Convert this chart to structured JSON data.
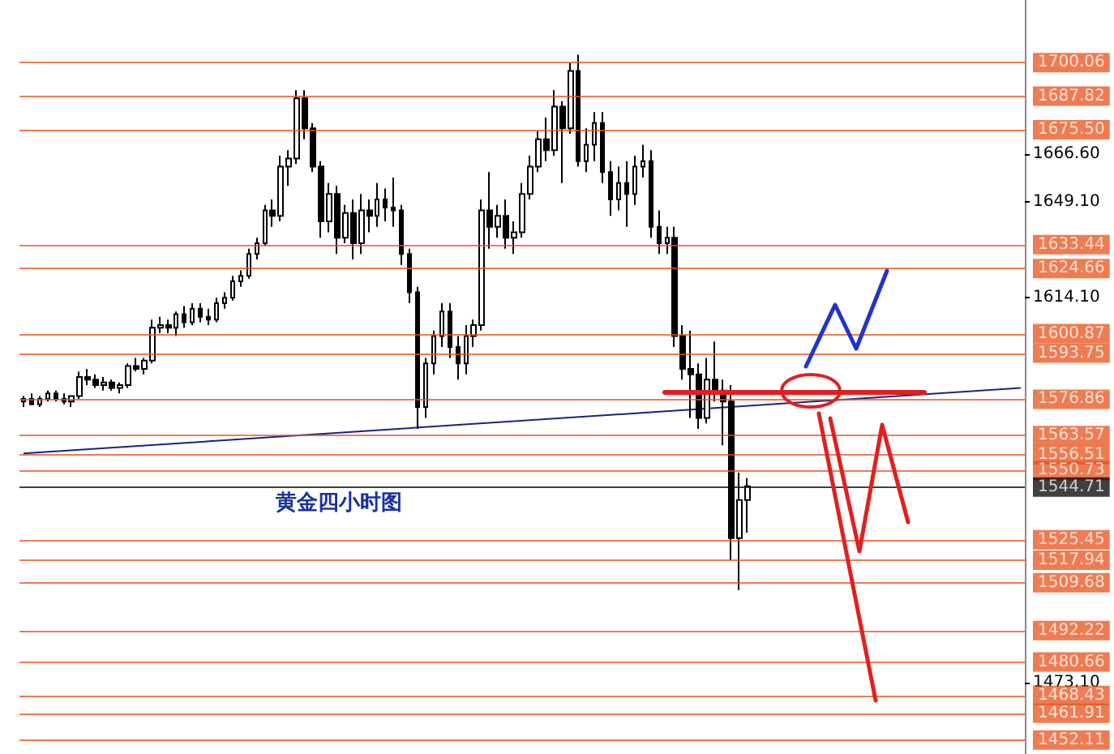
{
  "chart_data": {
    "type": "candlestick",
    "tick_labels": "y",
    "categories": [
      null,
      null,
      null,
      null,
      null,
      null,
      null,
      null,
      null,
      null,
      null,
      null,
      null,
      null,
      null,
      null,
      null,
      null,
      null,
      null,
      null,
      null,
      null,
      null,
      null,
      null,
      null,
      null,
      null,
      null,
      null,
      null,
      null,
      null,
      null,
      null,
      null,
      null,
      null,
      null,
      null,
      null,
      null,
      null,
      null,
      null,
      null,
      null,
      null,
      null,
      null,
      null,
      null,
      null,
      null,
      null,
      null,
      null,
      null,
      null,
      null,
      null,
      null,
      null,
      null,
      null,
      null,
      null,
      null,
      null,
      null,
      null,
      null,
      null,
      null,
      null,
      null,
      null,
      null,
      null,
      null,
      null,
      null,
      null,
      null,
      null,
      null,
      null,
      null,
      null,
      null,
      null,
      null,
      null,
      null,
      null,
      null,
      null,
      null,
      null,
      null,
      null,
      null,
      null,
      null,
      null,
      null,
      null,
      null,
      null,
      null,
      null,
      null,
      null,
      null,
      null,
      null,
      null,
      null,
      null,
      null,
      null,
      null,
      null,
      null
    ],
    "ohlc": [
      [
        1576,
        1578,
        1574,
        1577
      ],
      [
        1577,
        1579,
        1575,
        1575
      ],
      [
        1575,
        1578,
        1574,
        1577
      ],
      [
        1577,
        1580,
        1576,
        1579
      ],
      [
        1579,
        1580,
        1576,
        1577
      ],
      [
        1577,
        1579,
        1575,
        1576
      ],
      [
        1576,
        1578,
        1574,
        1578
      ],
      [
        1578,
        1587,
        1577,
        1585
      ],
      [
        1585,
        1588,
        1582,
        1584
      ],
      [
        1584,
        1586,
        1581,
        1582
      ],
      [
        1582,
        1585,
        1580,
        1583
      ],
      [
        1583,
        1584,
        1580,
        1581
      ],
      [
        1581,
        1583,
        1579,
        1582
      ],
      [
        1582,
        1590,
        1581,
        1589
      ],
      [
        1589,
        1592,
        1587,
        1588
      ],
      [
        1588,
        1592,
        1586,
        1591
      ],
      [
        1591,
        1606,
        1590,
        1603
      ],
      [
        1603,
        1607,
        1601,
        1604
      ],
      [
        1604,
        1606,
        1601,
        1603
      ],
      [
        1603,
        1609,
        1600,
        1608
      ],
      [
        1608,
        1611,
        1603,
        1605
      ],
      [
        1605,
        1612,
        1604,
        1610
      ],
      [
        1610,
        1612,
        1605,
        1607
      ],
      [
        1607,
        1610,
        1604,
        1606
      ],
      [
        1606,
        1614,
        1605,
        1612
      ],
      [
        1612,
        1616,
        1610,
        1614
      ],
      [
        1614,
        1622,
        1613,
        1620
      ],
      [
        1620,
        1624,
        1618,
        1622
      ],
      [
        1622,
        1632,
        1621,
        1630
      ],
      [
        1630,
        1636,
        1628,
        1634
      ],
      [
        1634,
        1648,
        1633,
        1646
      ],
      [
        1646,
        1650,
        1640,
        1644
      ],
      [
        1644,
        1666,
        1642,
        1662
      ],
      [
        1662,
        1668,
        1655,
        1665
      ],
      [
        1665,
        1690,
        1663,
        1687
      ],
      [
        1687,
        1690,
        1672,
        1676
      ],
      [
        1676,
        1678,
        1660,
        1662
      ],
      [
        1662,
        1664,
        1636,
        1642
      ],
      [
        1642,
        1656,
        1638,
        1652
      ],
      [
        1652,
        1655,
        1630,
        1636
      ],
      [
        1636,
        1648,
        1634,
        1645
      ],
      [
        1645,
        1650,
        1628,
        1634
      ],
      [
        1634,
        1652,
        1630,
        1646
      ],
      [
        1646,
        1650,
        1638,
        1644
      ],
      [
        1644,
        1656,
        1640,
        1650
      ],
      [
        1650,
        1654,
        1642,
        1647
      ],
      [
        1647,
        1658,
        1640,
        1646
      ],
      [
        1646,
        1648,
        1626,
        1630
      ],
      [
        1630,
        1632,
        1612,
        1616
      ],
      [
        1616,
        1618,
        1566,
        1574
      ],
      [
        1574,
        1592,
        1570,
        1590
      ],
      [
        1590,
        1602,
        1586,
        1600
      ],
      [
        1600,
        1612,
        1596,
        1609
      ],
      [
        1609,
        1612,
        1592,
        1596
      ],
      [
        1596,
        1600,
        1584,
        1590
      ],
      [
        1590,
        1604,
        1586,
        1600
      ],
      [
        1600,
        1606,
        1596,
        1604
      ],
      [
        1604,
        1650,
        1602,
        1646
      ],
      [
        1646,
        1660,
        1632,
        1640
      ],
      [
        1640,
        1648,
        1636,
        1644
      ],
      [
        1644,
        1650,
        1632,
        1636
      ],
      [
        1636,
        1642,
        1630,
        1638
      ],
      [
        1638,
        1656,
        1636,
        1652
      ],
      [
        1652,
        1666,
        1650,
        1662
      ],
      [
        1662,
        1675,
        1660,
        1672
      ],
      [
        1672,
        1680,
        1664,
        1668
      ],
      [
        1668,
        1690,
        1666,
        1684
      ],
      [
        1684,
        1686,
        1656,
        1676
      ],
      [
        1676,
        1700,
        1674,
        1697
      ],
      [
        1697,
        1703,
        1662,
        1664
      ],
      [
        1664,
        1676,
        1660,
        1670
      ],
      [
        1670,
        1682,
        1664,
        1678
      ],
      [
        1678,
        1682,
        1656,
        1660
      ],
      [
        1660,
        1664,
        1644,
        1650
      ],
      [
        1650,
        1662,
        1646,
        1656
      ],
      [
        1656,
        1664,
        1640,
        1652
      ],
      [
        1652,
        1666,
        1648,
        1662
      ],
      [
        1662,
        1670,
        1658,
        1664
      ],
      [
        1664,
        1668,
        1636,
        1640
      ],
      [
        1640,
        1646,
        1630,
        1634
      ],
      [
        1634,
        1640,
        1630,
        1636
      ],
      [
        1636,
        1640,
        1596,
        1600
      ],
      [
        1600,
        1604,
        1584,
        1588
      ],
      [
        1588,
        1602,
        1570,
        1586
      ],
      [
        1586,
        1590,
        1566,
        1570
      ],
      [
        1570,
        1592,
        1568,
        1584
      ],
      [
        1584,
        1598,
        1576,
        1580
      ],
      [
        1580,
        1584,
        1560,
        1576
      ],
      [
        1576,
        1582,
        1518,
        1526
      ],
      [
        1526,
        1550,
        1507,
        1540
      ],
      [
        1540,
        1548,
        1528,
        1545
      ],
      null,
      null,
      null,
      null,
      null,
      null,
      null,
      null,
      null,
      null,
      null,
      null,
      null,
      null,
      null,
      null,
      null,
      null,
      null,
      null,
      null,
      null,
      null,
      null,
      null,
      null,
      null,
      null,
      null,
      null,
      null,
      null,
      null,
      null
    ],
    "series": [
      {
        "type": "line",
        "color": "#1a237e",
        "values": [
          1557,
          null,
          null,
          null,
          null,
          null,
          null,
          null,
          null,
          null,
          null,
          null,
          null,
          null,
          null,
          null,
          null,
          null,
          null,
          null,
          null,
          null,
          null,
          null,
          null,
          null,
          null,
          null,
          null,
          null,
          null,
          null,
          null,
          null,
          null,
          null,
          null,
          null,
          null,
          null,
          null,
          null,
          null,
          null,
          null,
          null,
          null,
          null,
          null,
          null,
          null,
          null,
          null,
          null,
          null,
          null,
          null,
          null,
          null,
          null,
          null,
          null,
          null,
          null,
          null,
          null,
          null,
          null,
          null,
          null,
          null,
          null,
          null,
          null,
          null,
          null,
          null,
          null,
          null,
          null,
          null,
          null,
          null,
          null,
          null,
          null,
          null,
          null,
          null,
          null,
          null,
          null,
          null,
          null,
          null,
          null,
          null,
          null,
          null,
          null,
          null,
          null,
          null,
          null,
          null,
          null,
          null,
          null,
          null,
          null,
          null,
          null,
          null,
          null,
          null,
          null,
          null,
          null,
          null,
          null,
          null,
          null,
          null,
          null,
          1581
        ]
      }
    ],
    "ylim": [
      1447,
      1723
    ],
    "yticks": [
      {
        "value": 1666.6,
        "label": "1666.60"
      },
      {
        "value": 1649.1,
        "label": "1649.10"
      },
      {
        "value": 1614.1,
        "label": "1614.10"
      },
      {
        "value": 1473.1,
        "label": "1473.10"
      }
    ],
    "ref_lines": [
      {
        "axis": "y",
        "value": 1700.06,
        "label": "1700.06",
        "color": "#e8501a"
      },
      {
        "axis": "y",
        "value": 1687.82,
        "label": "1687.82",
        "color": "#e8501a"
      },
      {
        "axis": "y",
        "value": 1675.5,
        "label": "1675.50",
        "color": "#e8501a"
      },
      {
        "axis": "y",
        "value": 1633.44,
        "label": "1633.44",
        "color": "#e8501a"
      },
      {
        "axis": "y",
        "value": 1624.66,
        "label": "1624.66",
        "color": "#e8501a"
      },
      {
        "axis": "y",
        "value": 1600.87,
        "label": "1600.87",
        "color": "#e8501a"
      },
      {
        "axis": "y",
        "value": 1593.75,
        "label": "1593.75",
        "color": "#e8501a"
      },
      {
        "axis": "y",
        "value": 1576.86,
        "label": "1576.86",
        "color": "#e8501a"
      },
      {
        "axis": "y",
        "value": 1563.57,
        "label": "1563.57",
        "color": "#e8501a"
      },
      {
        "axis": "y",
        "value": 1556.51,
        "label": "1556.51",
        "color": "#e8501a"
      },
      {
        "axis": "y",
        "value": 1550.73,
        "label": "1550.73",
        "color": "#e8501a"
      },
      {
        "axis": "y",
        "value": 1544.71,
        "label": "1544.71",
        "color": "#000000"
      },
      {
        "axis": "y",
        "value": 1525.45,
        "label": "1525.45",
        "color": "#e8501a"
      },
      {
        "axis": "y",
        "value": 1517.94,
        "label": "1517.94",
        "color": "#e8501a"
      },
      {
        "axis": "y",
        "value": 1509.68,
        "label": "1509.68",
        "color": "#e8501a"
      },
      {
        "axis": "y",
        "value": 1492.22,
        "label": "1492.22",
        "color": "#e8501a"
      },
      {
        "axis": "y",
        "value": 1480.66,
        "label": "1480.66",
        "color": "#e8501a"
      },
      {
        "axis": "y",
        "value": 1468.43,
        "label": "1468.43",
        "color": "#e8501a"
      },
      {
        "axis": "y",
        "value": 1461.91,
        "label": "1461.91",
        "color": "#e8501a"
      },
      {
        "axis": "y",
        "value": 1452.11,
        "label": "1452.11",
        "color": "#e8501a"
      }
    ],
    "annotations": [
      "黄金四小时图"
    ]
  }
}
